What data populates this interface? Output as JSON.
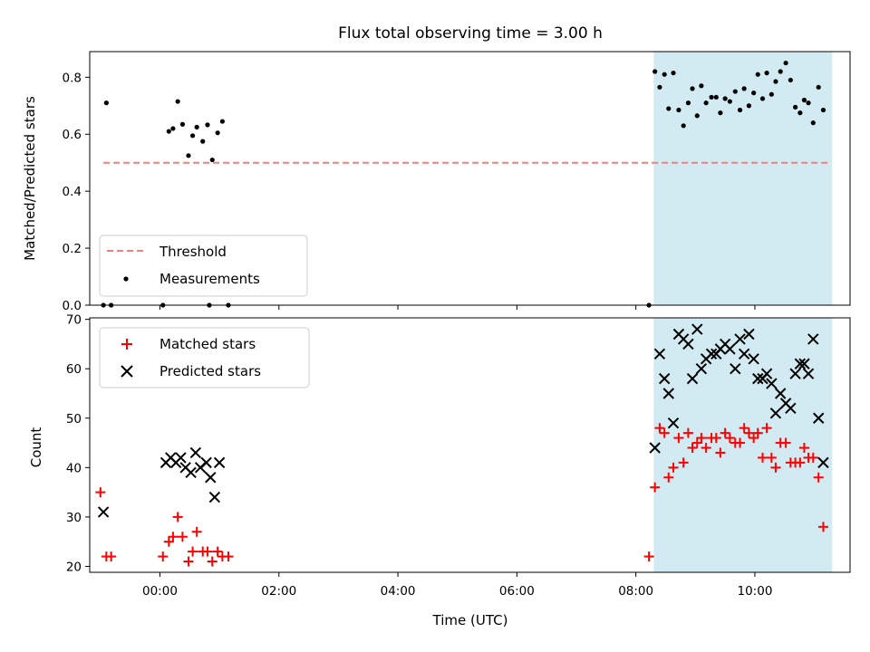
{
  "chart_data": {
    "title": "Flux total observing time = 3.00 h",
    "xlabel": "Time (UTC)",
    "x_ticks": [
      "00:00",
      "02:00",
      "04:00",
      "06:00",
      "08:00",
      "10:00"
    ],
    "x_tick_values_hours": [
      0,
      2,
      4,
      6,
      8,
      10
    ],
    "xlim_hours": [
      -1.18,
      11.6
    ],
    "colors": {
      "threshold": "#f08080",
      "measurements": "#000000",
      "matched": "#ff0000",
      "predicted": "#000000",
      "span_fill": "#add8e6"
    },
    "panels": [
      {
        "type": "scatter",
        "ylabel": "Matched/Predicted stars",
        "ylim": [
          0,
          0.89
        ],
        "y_ticks": [
          "0.0",
          "0.2",
          "0.4",
          "0.6",
          "0.8"
        ],
        "y_tick_values": [
          0,
          0.2,
          0.4,
          0.6,
          0.8
        ],
        "shaded_span_hours": [
          8.3,
          11.3
        ],
        "legend": [
          {
            "label": "Threshold",
            "kind": "dashed-line"
          },
          {
            "label": "Measurements",
            "kind": "dot"
          }
        ],
        "threshold": {
          "value": 0.5,
          "x_range_hours": [
            -0.95,
            11.25
          ]
        },
        "measurements": [
          [
            -0.95,
            0
          ],
          [
            -0.82,
            0
          ],
          [
            0.05,
            0
          ],
          [
            0.83,
            0
          ],
          [
            1.15,
            0
          ],
          [
            8.22,
            0
          ],
          [
            -0.9,
            0.71
          ],
          [
            0.15,
            0.61
          ],
          [
            0.22,
            0.62
          ],
          [
            0.3,
            0.715
          ],
          [
            0.38,
            0.635
          ],
          [
            0.48,
            0.525
          ],
          [
            0.55,
            0.595
          ],
          [
            0.62,
            0.625
          ],
          [
            0.72,
            0.575
          ],
          [
            0.8,
            0.633
          ],
          [
            0.88,
            0.51
          ],
          [
            0.97,
            0.605
          ],
          [
            1.05,
            0.645
          ],
          [
            8.32,
            0.82
          ],
          [
            8.4,
            0.765
          ],
          [
            8.48,
            0.81
          ],
          [
            8.55,
            0.69
          ],
          [
            8.63,
            0.815
          ],
          [
            8.72,
            0.685
          ],
          [
            8.8,
            0.63
          ],
          [
            8.88,
            0.71
          ],
          [
            8.95,
            0.76
          ],
          [
            9.03,
            0.665
          ],
          [
            9.1,
            0.77
          ],
          [
            9.18,
            0.71
          ],
          [
            9.27,
            0.73
          ],
          [
            9.35,
            0.73
          ],
          [
            9.42,
            0.675
          ],
          [
            9.5,
            0.725
          ],
          [
            9.58,
            0.715
          ],
          [
            9.67,
            0.75
          ],
          [
            9.75,
            0.685
          ],
          [
            9.82,
            0.76
          ],
          [
            9.9,
            0.7
          ],
          [
            9.98,
            0.745
          ],
          [
            10.05,
            0.81
          ],
          [
            10.13,
            0.725
          ],
          [
            10.2,
            0.815
          ],
          [
            10.28,
            0.74
          ],
          [
            10.35,
            0.785
          ],
          [
            10.43,
            0.82
          ],
          [
            10.52,
            0.85
          ],
          [
            10.6,
            0.79
          ],
          [
            10.68,
            0.695
          ],
          [
            10.76,
            0.675
          ],
          [
            10.83,
            0.72
          ],
          [
            10.9,
            0.71
          ],
          [
            10.98,
            0.64
          ],
          [
            11.07,
            0.765
          ],
          [
            11.15,
            0.685
          ]
        ]
      },
      {
        "type": "scatter",
        "ylabel": "Count",
        "ylim": [
          18.8,
          70.3
        ],
        "y_ticks": [
          "20",
          "30",
          "40",
          "50",
          "60",
          "70"
        ],
        "y_tick_values": [
          20,
          30,
          40,
          50,
          60,
          70
        ],
        "shaded_span_hours": [
          8.3,
          11.3
        ],
        "legend": [
          {
            "label": "Matched stars",
            "kind": "plus"
          },
          {
            "label": "Predicted stars",
            "kind": "x"
          }
        ],
        "series": [
          {
            "name": "Matched stars",
            "marker": "plus",
            "points": [
              [
                -1.0,
                35
              ],
              [
                -0.9,
                22
              ],
              [
                -0.82,
                22
              ],
              [
                0.05,
                22
              ],
              [
                0.15,
                25
              ],
              [
                0.22,
                26
              ],
              [
                0.3,
                30
              ],
              [
                0.38,
                26
              ],
              [
                0.48,
                21
              ],
              [
                0.55,
                23
              ],
              [
                0.62,
                27
              ],
              [
                0.72,
                23
              ],
              [
                0.8,
                23
              ],
              [
                0.88,
                21
              ],
              [
                0.97,
                23
              ],
              [
                1.05,
                22
              ],
              [
                1.15,
                22
              ],
              [
                8.22,
                22
              ],
              [
                8.32,
                36
              ],
              [
                8.4,
                48
              ],
              [
                8.48,
                47
              ],
              [
                8.55,
                38
              ],
              [
                8.63,
                40
              ],
              [
                8.72,
                46
              ],
              [
                8.8,
                41
              ],
              [
                8.88,
                47
              ],
              [
                8.95,
                44
              ],
              [
                9.03,
                45
              ],
              [
                9.1,
                46
              ],
              [
                9.18,
                44
              ],
              [
                9.27,
                46
              ],
              [
                9.35,
                46
              ],
              [
                9.42,
                43
              ],
              [
                9.5,
                47
              ],
              [
                9.58,
                46
              ],
              [
                9.67,
                45
              ],
              [
                9.75,
                45
              ],
              [
                9.82,
                48
              ],
              [
                9.9,
                47
              ],
              [
                9.98,
                46
              ],
              [
                10.05,
                47
              ],
              [
                10.13,
                42
              ],
              [
                10.2,
                48
              ],
              [
                10.28,
                42
              ],
              [
                10.35,
                40
              ],
              [
                10.43,
                45
              ],
              [
                10.52,
                45
              ],
              [
                10.6,
                41
              ],
              [
                10.68,
                41
              ],
              [
                10.76,
                41
              ],
              [
                10.83,
                44
              ],
              [
                10.9,
                42
              ],
              [
                10.98,
                42
              ],
              [
                11.07,
                38
              ],
              [
                11.15,
                28
              ]
            ]
          },
          {
            "name": "Predicted stars",
            "marker": "x",
            "points": [
              [
                -0.95,
                31
              ],
              [
                0.1,
                41
              ],
              [
                0.18,
                42
              ],
              [
                0.27,
                41
              ],
              [
                0.35,
                42
              ],
              [
                0.43,
                40
              ],
              [
                0.52,
                39
              ],
              [
                0.6,
                43
              ],
              [
                0.68,
                40
              ],
              [
                0.78,
                41
              ],
              [
                0.85,
                38
              ],
              [
                0.92,
                34
              ],
              [
                1.0,
                41
              ],
              [
                8.32,
                44
              ],
              [
                8.4,
                63
              ],
              [
                8.48,
                58
              ],
              [
                8.55,
                55
              ],
              [
                8.63,
                49
              ],
              [
                8.72,
                67
              ],
              [
                8.8,
                66
              ],
              [
                8.88,
                65
              ],
              [
                8.95,
                58
              ],
              [
                9.03,
                68
              ],
              [
                9.1,
                60
              ],
              [
                9.18,
                62
              ],
              [
                9.27,
                63
              ],
              [
                9.35,
                63
              ],
              [
                9.42,
                64
              ],
              [
                9.5,
                65
              ],
              [
                9.58,
                64
              ],
              [
                9.67,
                60
              ],
              [
                9.75,
                66
              ],
              [
                9.82,
                63
              ],
              [
                9.9,
                67
              ],
              [
                9.98,
                62
              ],
              [
                10.05,
                58
              ],
              [
                10.13,
                58
              ],
              [
                10.2,
                59
              ],
              [
                10.28,
                57
              ],
              [
                10.35,
                51
              ],
              [
                10.43,
                55
              ],
              [
                10.52,
                53
              ],
              [
                10.6,
                52
              ],
              [
                10.68,
                59
              ],
              [
                10.76,
                61
              ],
              [
                10.83,
                61
              ],
              [
                10.9,
                59
              ],
              [
                10.98,
                66
              ],
              [
                11.07,
                50
              ],
              [
                11.15,
                41
              ]
            ]
          }
        ]
      }
    ]
  }
}
